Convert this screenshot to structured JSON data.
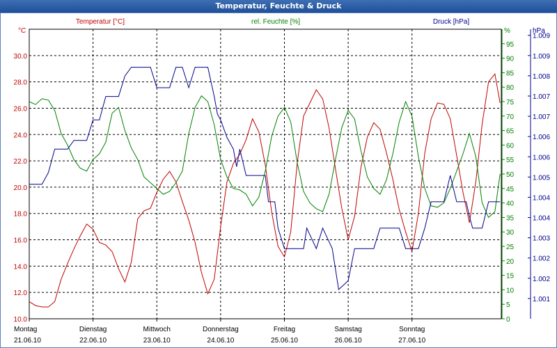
{
  "title": "Temperatur, Feuchte & Druck",
  "colors": {
    "temperature": "#c00000",
    "humidity": "#008000",
    "pressure": "#00008b",
    "grid": "#000000",
    "title_bar": "#2a5aa6"
  },
  "chart_data": {
    "type": "line",
    "title": "Temperatur, Feuchte & Druck",
    "x_categories": [
      {
        "day": "Montag",
        "date": "21.06.10"
      },
      {
        "day": "Dienstag",
        "date": "22.06.10"
      },
      {
        "day": "Mittwoch",
        "date": "23.06.10"
      },
      {
        "day": "Donnerstag",
        "date": "24.06.10"
      },
      {
        "day": "Freitag",
        "date": "25.06.10"
      },
      {
        "day": "Samstag",
        "date": "26.06.10"
      },
      {
        "day": "Sonntag",
        "date": "27.06.10"
      }
    ],
    "x_range_days": [
      0,
      7.4
    ],
    "axes": {
      "temperature": {
        "label": "Temperatur [°C]",
        "unit": "°C",
        "min": 10,
        "max": 32,
        "ticks": [
          "10.0",
          "12.0",
          "14.0",
          "16.0",
          "18.0",
          "20.0",
          "22.0",
          "24.0",
          "26.0",
          "28.0",
          "30.0"
        ]
      },
      "humidity": {
        "label": "rel. Feuchte [%]",
        "unit": "%",
        "min": 0,
        "max": 100,
        "ticks": [
          "0",
          "5",
          "10",
          "15",
          "20",
          "25",
          "30",
          "35",
          "40",
          "45",
          "50",
          "55",
          "60",
          "65",
          "70",
          "75",
          "80",
          "85",
          "90",
          "95"
        ]
      },
      "pressure": {
        "label": "Druck [hPa]",
        "unit": "hPa",
        "min": 1000.0,
        "max": 1009.9,
        "tick_labels": [
          "1.001",
          "1.002",
          "1.002",
          "1.003",
          "1.004",
          "1.004",
          "1.005",
          "1.006",
          "1.006",
          "1.007",
          "1.007",
          "1.008",
          "1.009",
          "1.009"
        ]
      }
    },
    "series": [
      {
        "name": "Temperatur",
        "axis": "temperature",
        "points": [
          [
            0,
            11.3
          ],
          [
            0.1,
            11.0
          ],
          [
            0.2,
            10.9
          ],
          [
            0.3,
            10.9
          ],
          [
            0.4,
            11.3
          ],
          [
            0.5,
            13.0
          ],
          [
            0.6,
            14.2
          ],
          [
            0.7,
            15.3
          ],
          [
            0.8,
            16.3
          ],
          [
            0.9,
            17.2
          ],
          [
            1.0,
            16.8
          ],
          [
            1.1,
            15.8
          ],
          [
            1.2,
            15.6
          ],
          [
            1.3,
            15.1
          ],
          [
            1.4,
            13.8
          ],
          [
            1.5,
            12.8
          ],
          [
            1.6,
            14.3
          ],
          [
            1.7,
            17.6
          ],
          [
            1.8,
            18.2
          ],
          [
            1.9,
            18.4
          ],
          [
            2.0,
            19.6
          ],
          [
            2.1,
            20.6
          ],
          [
            2.2,
            21.2
          ],
          [
            2.3,
            20.4
          ],
          [
            2.4,
            18.9
          ],
          [
            2.5,
            17.5
          ],
          [
            2.6,
            15.8
          ],
          [
            2.7,
            13.5
          ],
          [
            2.8,
            11.9
          ],
          [
            2.9,
            13.0
          ],
          [
            3.0,
            17.0
          ],
          [
            3.1,
            20.4
          ],
          [
            3.2,
            21.8
          ],
          [
            3.3,
            22.5
          ],
          [
            3.4,
            23.6
          ],
          [
            3.5,
            25.2
          ],
          [
            3.6,
            24.2
          ],
          [
            3.7,
            21.7
          ],
          [
            3.8,
            18.1
          ],
          [
            3.9,
            15.5
          ],
          [
            4.0,
            14.7
          ],
          [
            4.1,
            16.6
          ],
          [
            4.2,
            21.8
          ],
          [
            4.3,
            25.4
          ],
          [
            4.4,
            26.4
          ],
          [
            4.5,
            27.4
          ],
          [
            4.6,
            26.7
          ],
          [
            4.7,
            24.5
          ],
          [
            4.8,
            21.4
          ],
          [
            4.9,
            18.4
          ],
          [
            5.0,
            16.0
          ],
          [
            5.1,
            17.8
          ],
          [
            5.2,
            21.5
          ],
          [
            5.3,
            23.8
          ],
          [
            5.4,
            24.9
          ],
          [
            5.5,
            24.4
          ],
          [
            5.6,
            22.6
          ],
          [
            5.7,
            20.6
          ],
          [
            5.8,
            18.3
          ],
          [
            5.9,
            16.6
          ],
          [
            6.0,
            15.1
          ],
          [
            6.1,
            18.0
          ],
          [
            6.2,
            22.6
          ],
          [
            6.3,
            25.2
          ],
          [
            6.4,
            26.4
          ],
          [
            6.5,
            26.3
          ],
          [
            6.6,
            25.2
          ],
          [
            6.7,
            22.4
          ],
          [
            6.8,
            19.6
          ],
          [
            6.9,
            17.3
          ],
          [
            7.0,
            20.4
          ],
          [
            7.1,
            24.8
          ],
          [
            7.2,
            28.0
          ],
          [
            7.3,
            28.6
          ],
          [
            7.38,
            26.4
          ]
        ]
      },
      {
        "name": "rel. Feuchte",
        "axis": "humidity",
        "points": [
          [
            0,
            75
          ],
          [
            0.1,
            74
          ],
          [
            0.2,
            76
          ],
          [
            0.3,
            75.5
          ],
          [
            0.4,
            72
          ],
          [
            0.5,
            64
          ],
          [
            0.6,
            60
          ],
          [
            0.7,
            55
          ],
          [
            0.8,
            52
          ],
          [
            0.9,
            51
          ],
          [
            1.0,
            55
          ],
          [
            1.1,
            57
          ],
          [
            1.2,
            61
          ],
          [
            1.3,
            71
          ],
          [
            1.4,
            73
          ],
          [
            1.5,
            65
          ],
          [
            1.6,
            59
          ],
          [
            1.7,
            55
          ],
          [
            1.8,
            49
          ],
          [
            1.9,
            47
          ],
          [
            2.0,
            45
          ],
          [
            2.1,
            43
          ],
          [
            2.2,
            44
          ],
          [
            2.3,
            47
          ],
          [
            2.4,
            51
          ],
          [
            2.5,
            64
          ],
          [
            2.6,
            73
          ],
          [
            2.7,
            77
          ],
          [
            2.8,
            75
          ],
          [
            2.9,
            67
          ],
          [
            3.0,
            55
          ],
          [
            3.1,
            49
          ],
          [
            3.2,
            45
          ],
          [
            3.3,
            44.5
          ],
          [
            3.4,
            43
          ],
          [
            3.5,
            39
          ],
          [
            3.6,
            42
          ],
          [
            3.7,
            51
          ],
          [
            3.8,
            63
          ],
          [
            3.9,
            70
          ],
          [
            4.0,
            73
          ],
          [
            4.1,
            68
          ],
          [
            4.2,
            54
          ],
          [
            4.3,
            44
          ],
          [
            4.4,
            40
          ],
          [
            4.5,
            38
          ],
          [
            4.6,
            37
          ],
          [
            4.7,
            43
          ],
          [
            4.8,
            55
          ],
          [
            4.9,
            66
          ],
          [
            5.0,
            72
          ],
          [
            5.1,
            69
          ],
          [
            5.2,
            58
          ],
          [
            5.3,
            49
          ],
          [
            5.4,
            45
          ],
          [
            5.5,
            43
          ],
          [
            5.6,
            48
          ],
          [
            5.7,
            57
          ],
          [
            5.8,
            68
          ],
          [
            5.9,
            75
          ],
          [
            6.0,
            70
          ],
          [
            6.1,
            56
          ],
          [
            6.2,
            45
          ],
          [
            6.3,
            39
          ],
          [
            6.4,
            38.5
          ],
          [
            6.5,
            40
          ],
          [
            6.6,
            45
          ],
          [
            6.7,
            51
          ],
          [
            6.8,
            57
          ],
          [
            6.9,
            64
          ],
          [
            7.0,
            56
          ],
          [
            7.1,
            40
          ],
          [
            7.2,
            35
          ],
          [
            7.3,
            37
          ],
          [
            7.38,
            50
          ]
        ]
      },
      {
        "name": "Druck",
        "axis": "pressure",
        "points": [
          [
            0,
            1004.6
          ],
          [
            0.2,
            1004.6
          ],
          [
            0.3,
            1005.0
          ],
          [
            0.4,
            1005.8
          ],
          [
            0.6,
            1005.8
          ],
          [
            0.7,
            1006.1
          ],
          [
            0.9,
            1006.1
          ],
          [
            1.0,
            1006.8
          ],
          [
            1.1,
            1006.8
          ],
          [
            1.2,
            1007.6
          ],
          [
            1.4,
            1007.6
          ],
          [
            1.5,
            1008.3
          ],
          [
            1.6,
            1008.6
          ],
          [
            1.8,
            1008.6
          ],
          [
            1.9,
            1008.6
          ],
          [
            2.0,
            1007.9
          ],
          [
            2.2,
            1007.9
          ],
          [
            2.3,
            1008.6
          ],
          [
            2.4,
            1008.6
          ],
          [
            2.5,
            1007.9
          ],
          [
            2.6,
            1008.6
          ],
          [
            2.8,
            1008.6
          ],
          [
            2.9,
            1007.6
          ],
          [
            2.95,
            1007.0
          ],
          [
            3.0,
            1006.8
          ],
          [
            3.1,
            1006.2
          ],
          [
            3.2,
            1005.8
          ],
          [
            3.25,
            1005.2
          ],
          [
            3.3,
            1005.8
          ],
          [
            3.4,
            1004.9
          ],
          [
            3.7,
            1004.9
          ],
          [
            3.75,
            1004.0
          ],
          [
            3.85,
            1004.0
          ],
          [
            3.9,
            1003.1
          ],
          [
            4.0,
            1002.4
          ],
          [
            4.3,
            1002.4
          ],
          [
            4.35,
            1003.1
          ],
          [
            4.5,
            1002.4
          ],
          [
            4.6,
            1003.1
          ],
          [
            4.75,
            1002.4
          ],
          [
            4.85,
            1001.0
          ],
          [
            5.0,
            1001.3
          ],
          [
            5.1,
            1002.4
          ],
          [
            5.4,
            1002.4
          ],
          [
            5.5,
            1003.1
          ],
          [
            5.8,
            1003.1
          ],
          [
            5.9,
            1002.4
          ],
          [
            6.1,
            1002.4
          ],
          [
            6.2,
            1003.1
          ],
          [
            6.3,
            1004.0
          ],
          [
            6.5,
            1004.0
          ],
          [
            6.6,
            1004.9
          ],
          [
            6.7,
            1004.0
          ],
          [
            6.85,
            1004.0
          ],
          [
            6.9,
            1003.5
          ],
          [
            6.95,
            1003.1
          ],
          [
            7.1,
            1003.1
          ],
          [
            7.2,
            1004.0
          ],
          [
            7.38,
            1004.0
          ]
        ]
      }
    ]
  }
}
